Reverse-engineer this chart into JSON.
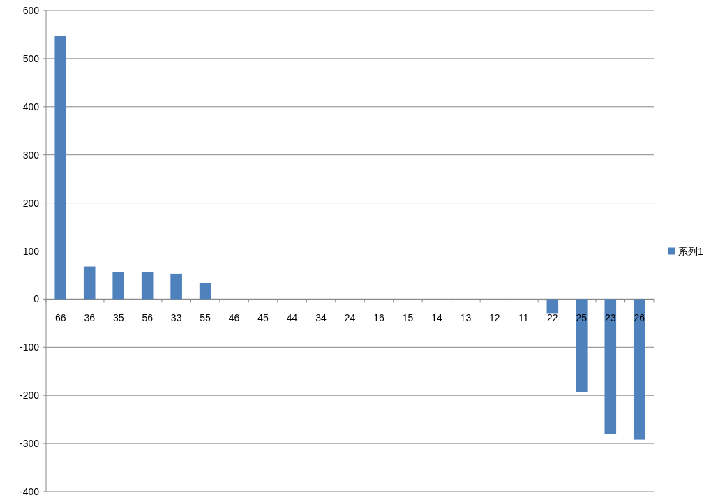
{
  "chart_data": {
    "type": "bar",
    "categories": [
      "66",
      "36",
      "35",
      "56",
      "33",
      "55",
      "46",
      "45",
      "44",
      "34",
      "24",
      "16",
      "15",
      "14",
      "13",
      "12",
      "11",
      "22",
      "25",
      "23",
      "26"
    ],
    "series": [
      {
        "name": "系列1",
        "color": "#4f81bd",
        "values": [
          547,
          68,
          57,
          56,
          53,
          34,
          0,
          0,
          0,
          0,
          0,
          0,
          0,
          0,
          0,
          0,
          0,
          -29,
          -193,
          -280,
          -292
        ]
      }
    ],
    "ylim": [
      -400,
      600
    ],
    "yticks": [
      -400,
      -300,
      -200,
      -100,
      0,
      100,
      200,
      300,
      400,
      500,
      600
    ],
    "grid": "y",
    "legend": "right"
  }
}
